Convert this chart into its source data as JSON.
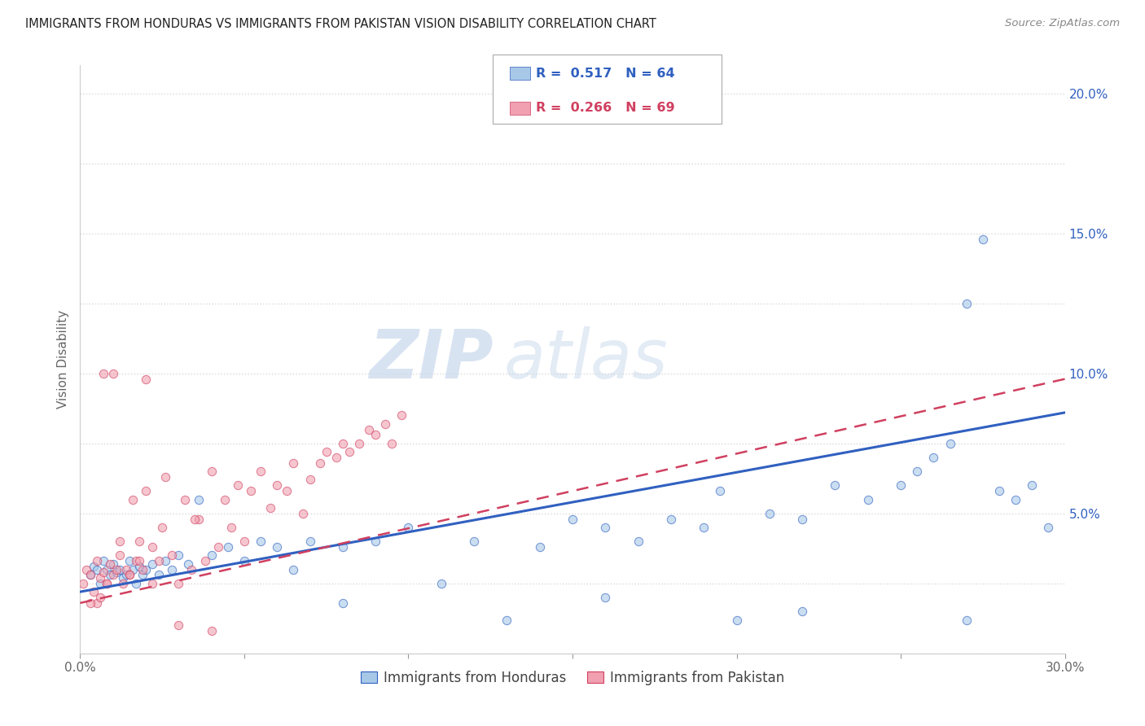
{
  "title": "IMMIGRANTS FROM HONDURAS VS IMMIGRANTS FROM PAKISTAN VISION DISABILITY CORRELATION CHART",
  "source": "Source: ZipAtlas.com",
  "ylabel": "Vision Disability",
  "x_min": 0.0,
  "x_max": 0.3,
  "y_min": 0.0,
  "y_max": 0.21,
  "x_ticks": [
    0.0,
    0.05,
    0.1,
    0.15,
    0.2,
    0.25,
    0.3
  ],
  "y_ticks": [
    0.0,
    0.025,
    0.05,
    0.075,
    0.1,
    0.125,
    0.15,
    0.175,
    0.2
  ],
  "legend1_label": "Immigrants from Honduras",
  "legend2_label": "Immigrants from Pakistan",
  "r1": "0.517",
  "n1": "64",
  "r2": "0.266",
  "n2": "69",
  "color1": "#a8c8e8",
  "color2": "#f0a0b0",
  "line1_color": "#3060c0",
  "line2_color": "#d04060",
  "watermark_zip": "ZIP",
  "watermark_atlas": "atlas",
  "bg_color": "#ffffff",
  "grid_color": "#d8d8d8",
  "scatter1_x": [
    0.003,
    0.004,
    0.005,
    0.006,
    0.007,
    0.008,
    0.009,
    0.01,
    0.011,
    0.012,
    0.013,
    0.014,
    0.015,
    0.016,
    0.017,
    0.018,
    0.019,
    0.02,
    0.022,
    0.024,
    0.026,
    0.028,
    0.03,
    0.033,
    0.036,
    0.04,
    0.045,
    0.05,
    0.055,
    0.06,
    0.065,
    0.07,
    0.08,
    0.09,
    0.1,
    0.11,
    0.12,
    0.13,
    0.14,
    0.15,
    0.16,
    0.17,
    0.18,
    0.19,
    0.195,
    0.2,
    0.21,
    0.22,
    0.23,
    0.24,
    0.25,
    0.255,
    0.26,
    0.265,
    0.27,
    0.275,
    0.28,
    0.285,
    0.29,
    0.295,
    0.08,
    0.16,
    0.22,
    0.27
  ],
  "scatter1_y": [
    0.028,
    0.031,
    0.03,
    0.025,
    0.033,
    0.03,
    0.028,
    0.032,
    0.029,
    0.03,
    0.027,
    0.028,
    0.033,
    0.03,
    0.025,
    0.031,
    0.028,
    0.03,
    0.032,
    0.028,
    0.033,
    0.03,
    0.035,
    0.032,
    0.055,
    0.035,
    0.038,
    0.033,
    0.04,
    0.038,
    0.03,
    0.04,
    0.038,
    0.04,
    0.045,
    0.025,
    0.04,
    0.012,
    0.038,
    0.048,
    0.045,
    0.04,
    0.048,
    0.045,
    0.058,
    0.012,
    0.05,
    0.048,
    0.06,
    0.055,
    0.06,
    0.065,
    0.07,
    0.075,
    0.125,
    0.148,
    0.058,
    0.055,
    0.06,
    0.045,
    0.018,
    0.02,
    0.015,
    0.012
  ],
  "scatter2_x": [
    0.001,
    0.002,
    0.003,
    0.004,
    0.005,
    0.006,
    0.007,
    0.008,
    0.009,
    0.01,
    0.011,
    0.012,
    0.013,
    0.014,
    0.015,
    0.016,
    0.017,
    0.018,
    0.019,
    0.02,
    0.022,
    0.024,
    0.026,
    0.028,
    0.03,
    0.032,
    0.034,
    0.036,
    0.038,
    0.04,
    0.042,
    0.044,
    0.046,
    0.048,
    0.05,
    0.052,
    0.055,
    0.058,
    0.06,
    0.063,
    0.065,
    0.068,
    0.07,
    0.073,
    0.075,
    0.078,
    0.08,
    0.082,
    0.085,
    0.088,
    0.09,
    0.093,
    0.095,
    0.098,
    0.01,
    0.02,
    0.03,
    0.04,
    0.005,
    0.008,
    0.012,
    0.018,
    0.025,
    0.035,
    0.007,
    0.015,
    0.022,
    0.003,
    0.006
  ],
  "scatter2_y": [
    0.025,
    0.03,
    0.028,
    0.022,
    0.033,
    0.027,
    0.029,
    0.025,
    0.032,
    0.028,
    0.03,
    0.035,
    0.025,
    0.03,
    0.028,
    0.055,
    0.033,
    0.033,
    0.03,
    0.058,
    0.038,
    0.033,
    0.063,
    0.035,
    0.025,
    0.055,
    0.03,
    0.048,
    0.033,
    0.065,
    0.038,
    0.055,
    0.045,
    0.06,
    0.04,
    0.058,
    0.065,
    0.052,
    0.06,
    0.058,
    0.068,
    0.05,
    0.062,
    0.068,
    0.072,
    0.07,
    0.075,
    0.072,
    0.075,
    0.08,
    0.078,
    0.082,
    0.075,
    0.085,
    0.1,
    0.098,
    0.01,
    0.008,
    0.018,
    0.025,
    0.04,
    0.04,
    0.045,
    0.048,
    0.1,
    0.028,
    0.025,
    0.018,
    0.02
  ],
  "trendline1_x": [
    0.0,
    0.3
  ],
  "trendline1_y": [
    0.022,
    0.086
  ],
  "trendline2_x": [
    0.0,
    0.3
  ],
  "trendline2_y": [
    0.018,
    0.098
  ]
}
